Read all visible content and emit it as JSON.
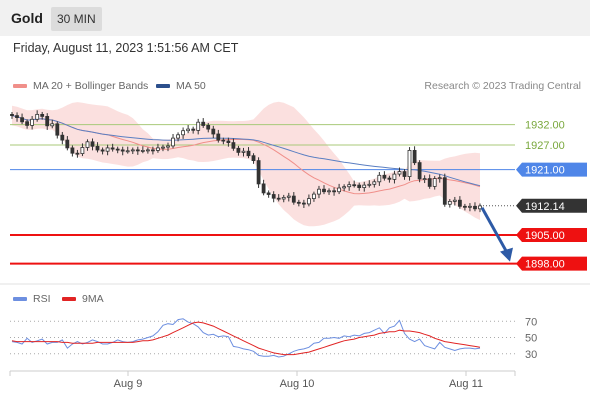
{
  "header": {
    "instrument": "Gold",
    "timeframe": "30 MIN"
  },
  "timestamp": "Friday, August 11, 2023 1:51:56 AM CET",
  "legend": {
    "bb_label": "MA 20 + Bollinger Bands",
    "ma50_label": "MA 50",
    "research": "Research © 2023 Trading Central",
    "rsi_label": "RSI",
    "rsi_ma_label": "9MA"
  },
  "colors": {
    "candle": "#333333",
    "bollinger": "#f7c7c5",
    "ma20": "#f08f8a",
    "ma50": "#5b7fc2",
    "resistance": "#a8c97a",
    "pivot": "#4f86e8",
    "support": "#ee1111",
    "arrow": "#2d5aa6",
    "rsi": "#6d8fe0",
    "rsi_ma": "#e12424"
  },
  "chart_data": [
    {
      "type": "candlestick",
      "price_range": [
        1893,
        1939
      ],
      "x_ticks": [
        "Aug 9",
        "Aug 10",
        "Aug 11"
      ],
      "levels": [
        {
          "label": "1932.00",
          "value": 1932,
          "kind": "resistance"
        },
        {
          "label": "1927.00",
          "value": 1927,
          "kind": "resistance"
        },
        {
          "label": "1921.00",
          "value": 1921,
          "kind": "pivot"
        },
        {
          "label": "1912.14",
          "value": 1912.14,
          "kind": "last"
        },
        {
          "label": "1905.00",
          "value": 1905,
          "kind": "support"
        },
        {
          "label": "1898.00",
          "value": 1898,
          "kind": "support"
        }
      ],
      "arrow": {
        "from": 1912.14,
        "to": 1898
      },
      "close": [
        1934.2,
        1933.7,
        1932.7,
        1931.8,
        1933.3,
        1934.5,
        1934.0,
        1931.7,
        1932.2,
        1929.4,
        1928.2,
        1926.3,
        1925.0,
        1924.9,
        1926.4,
        1927.8,
        1926.7,
        1925.8,
        1925.5,
        1926.3,
        1926.0,
        1925.8,
        1925.5,
        1925.6,
        1925.8,
        1925.6,
        1925.7,
        1925.8,
        1925.7,
        1926.3,
        1926.5,
        1926.8,
        1928.7,
        1929.5,
        1930.5,
        1930.9,
        1930.6,
        1932.6,
        1931.8,
        1930.9,
        1929.7,
        1928.2,
        1928.0,
        1927.6,
        1926.2,
        1925.2,
        1925.5,
        1924.4,
        1923.2,
        1917.5,
        1915.3,
        1914.9,
        1914.0,
        1913.8,
        1914.2,
        1914.5,
        1913.0,
        1912.8,
        1912.6,
        1913.9,
        1915.0,
        1916.2,
        1915.6,
        1915.8,
        1915.6,
        1916.5,
        1916.8,
        1917.3,
        1917.2,
        1916.6,
        1917.2,
        1917.4,
        1918.0,
        1919.6,
        1918.9,
        1918.6,
        1919.9,
        1920.5,
        1919.3,
        1925.7,
        1922.7,
        1918.7,
        1918.8,
        1916.9,
        1918.8,
        1919.0,
        1912.5,
        1913.2,
        1913.5,
        1912.0,
        1911.8,
        1912.0,
        1911.4,
        1912.1
      ],
      "series": [
        {
          "name": "MA 20 + Bollinger Bands"
        },
        {
          "name": "MA 50"
        }
      ]
    },
    {
      "type": "line",
      "name": "RSI",
      "y_ticks": [
        30,
        50,
        70
      ],
      "ylim": [
        10,
        90
      ],
      "series": [
        {
          "name": "RSI",
          "values": [
            45,
            44,
            42,
            49,
            44,
            46,
            48,
            42,
            44,
            44,
            47,
            37,
            42,
            45,
            42,
            44,
            47,
            45,
            42,
            42,
            44,
            47,
            45,
            44,
            45,
            47,
            48,
            50,
            52,
            57,
            65,
            67,
            66,
            72,
            73,
            69,
            67,
            63,
            56,
            53,
            54,
            51,
            52,
            51,
            39,
            38,
            36,
            35,
            33,
            28,
            27,
            27,
            28,
            26,
            27,
            30,
            33,
            35,
            36,
            38,
            43,
            44,
            49,
            49,
            50,
            49,
            52,
            51,
            53,
            52,
            55,
            56,
            59,
            62,
            55,
            62,
            64,
            71,
            55,
            48,
            45,
            48,
            40,
            38,
            36,
            44,
            38,
            36,
            34,
            36,
            37,
            37,
            36,
            37
          ]
        },
        {
          "name": "9MA",
          "values": [
            46,
            45,
            45,
            45,
            45,
            45,
            45,
            45,
            45,
            45,
            44,
            44,
            43,
            43,
            43,
            43,
            43,
            44,
            44,
            44,
            44,
            44,
            44,
            44,
            44,
            45,
            46,
            46,
            47,
            49,
            51,
            53,
            56,
            59,
            62,
            65,
            68,
            69,
            68,
            66,
            64,
            61,
            58,
            55,
            52,
            49,
            46,
            43,
            40,
            37,
            35,
            33,
            31,
            30,
            29,
            29,
            29,
            30,
            31,
            32,
            34,
            36,
            38,
            40,
            42,
            44,
            46,
            47,
            48,
            50,
            51,
            52,
            53,
            55,
            56,
            57,
            57,
            59,
            58,
            58,
            57,
            56,
            54,
            52,
            49,
            47,
            45,
            44,
            43,
            42,
            41,
            40,
            39,
            38
          ]
        }
      ]
    }
  ]
}
